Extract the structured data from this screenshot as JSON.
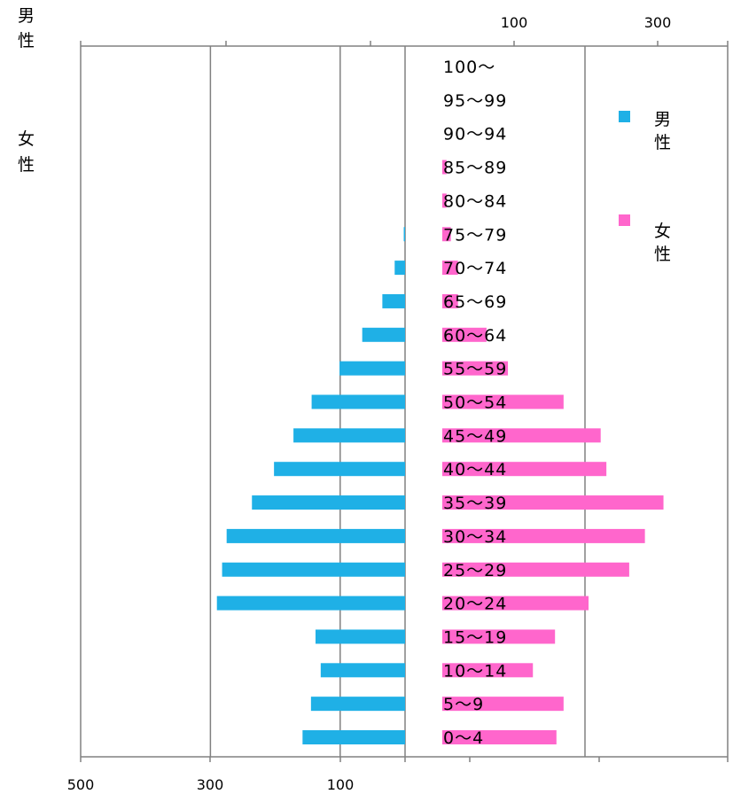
{
  "chart_data": {
    "type": "bar",
    "orientation": "horizontal",
    "layout": "population-pyramid",
    "categories": [
      "0～4",
      "5～9",
      "10～14",
      "15～19",
      "20～24",
      "25～29",
      "30～34",
      "35～39",
      "40～44",
      "45～49",
      "50～54",
      "55～59",
      "60～64",
      "65～69",
      "70～74",
      "75～79",
      "80～84",
      "85～89",
      "90～94",
      "95～99",
      "100～"
    ],
    "series": [
      {
        "name": "男性",
        "color": "#1fb0e6",
        "side": "left",
        "values": [
          158,
          145,
          130,
          138,
          290,
          282,
          275,
          236,
          202,
          172,
          144,
          101,
          66,
          35,
          16,
          2,
          0,
          0,
          0,
          0,
          0
        ]
      },
      {
        "name": "女性",
        "color": "#ff66cc",
        "side": "right",
        "values": [
          160,
          170,
          127,
          158,
          205,
          262,
          284,
          310,
          230,
          222,
          170,
          92,
          62,
          22,
          22,
          12,
          6,
          6,
          0,
          0,
          0
        ]
      }
    ],
    "left_axis": {
      "ticks": [
        500,
        300,
        100
      ],
      "range": [
        500,
        0
      ]
    },
    "right_axis": {
      "ticks": [
        100,
        300
      ],
      "range": [
        0,
        400
      ]
    },
    "grid": true,
    "legend": {
      "placement": "right",
      "items": [
        {
          "label_line1": "男",
          "label_line2": "性",
          "color": "#1fb0e6"
        },
        {
          "label_line1": "女",
          "label_line2": "性",
          "color": "#ff66cc"
        }
      ]
    },
    "corner_labels": {
      "male": {
        "line1": "男",
        "line2": "性"
      },
      "female": {
        "line1": "女",
        "line2": "性"
      }
    },
    "gridline_color": "#808080"
  }
}
